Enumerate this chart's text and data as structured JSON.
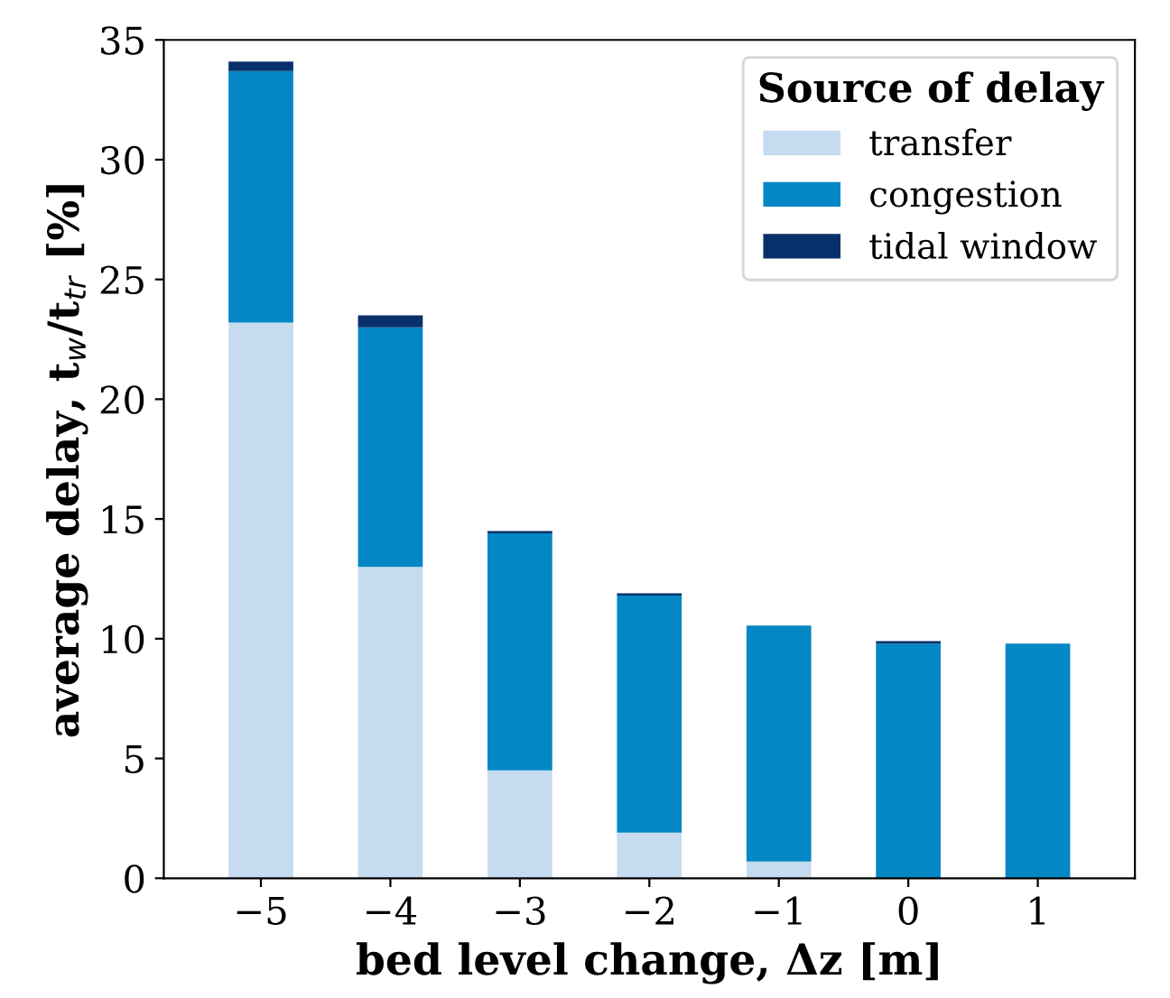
{
  "chart_data": {
    "type": "bar",
    "stacked": true,
    "xlabel": "bed level change, Δz [m]",
    "ylabel": "average delay, t$_{w}$/t$_{tr}$ [%]",
    "legend_title": "Source of delay",
    "legend": "top right",
    "grid": false,
    "categories": [
      "−5",
      "−4",
      "−3",
      "−2",
      "−1",
      "0",
      "1"
    ],
    "series": [
      {
        "name": "transfer",
        "color": "#c6dbef",
        "values": [
          23.2,
          13.0,
          4.5,
          1.9,
          0.7,
          0,
          0
        ]
      },
      {
        "name": "congestion",
        "color": "#0487c4",
        "values": [
          10.5,
          10.0,
          9.9,
          9.9,
          9.85,
          9.8,
          9.8
        ]
      },
      {
        "name": "tidal window",
        "color": "#08306b",
        "values": [
          0.4,
          0.5,
          0.1,
          0.1,
          0,
          0.1,
          0
        ]
      }
    ],
    "ylim": [
      0,
      35
    ],
    "yticks": [
      0,
      5,
      10,
      15,
      20,
      25,
      30,
      35
    ]
  }
}
